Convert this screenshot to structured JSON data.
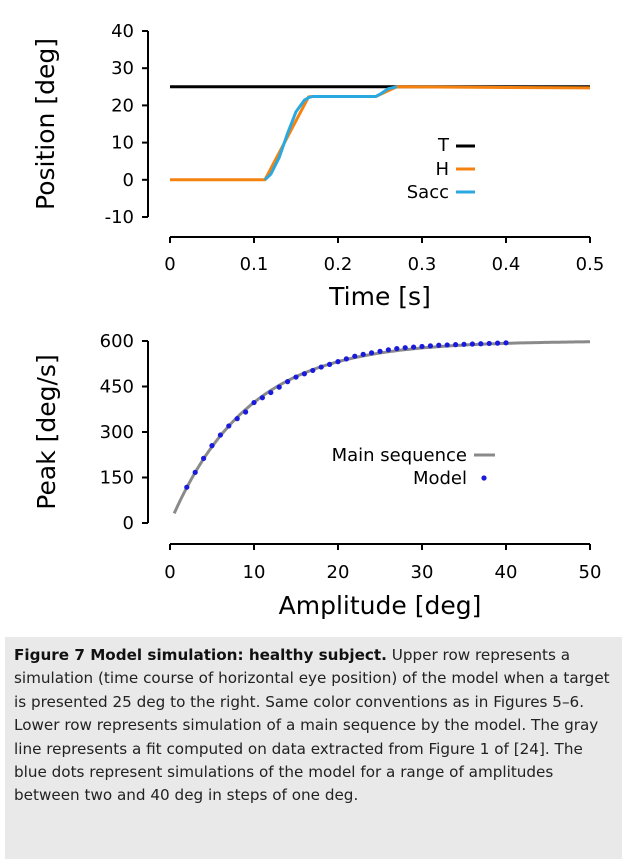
{
  "chart_data": [
    {
      "type": "line",
      "xlabel": "Time [s]",
      "ylabel": "Position [deg]",
      "xlim": [
        0,
        0.5
      ],
      "ylim": [
        -10,
        40
      ],
      "xticks": [
        "0",
        "0.1",
        "0.2",
        "0.3",
        "0.4",
        "0.5"
      ],
      "yticks": [
        "40",
        "30",
        "20",
        "10",
        "0",
        "-10"
      ],
      "legend_position": "right",
      "series": [
        {
          "name": "T",
          "color": "#000000",
          "x": [
            0,
            0.5
          ],
          "y": [
            25,
            25
          ]
        },
        {
          "name": "H",
          "color": "#f5820f",
          "x": [
            0,
            0.113,
            0.165,
            0.17,
            0.245,
            0.27,
            0.5
          ],
          "y": [
            0,
            0,
            22.3,
            22.4,
            22.4,
            25,
            24.7
          ]
        },
        {
          "name": "Sacc",
          "color": "#29a9e0",
          "x": [
            0.113,
            0.12,
            0.13,
            0.14,
            0.15,
            0.16,
            0.165,
            0.17,
            0.245,
            0.25,
            0.26,
            0.27
          ],
          "y": [
            0,
            1.5,
            6.0,
            12.5,
            18.3,
            21.4,
            22.1,
            22.4,
            22.4,
            23.0,
            24.5,
            25.0
          ]
        }
      ]
    },
    {
      "type": "scatter",
      "xlabel": "Amplitude [deg]",
      "ylabel": "Peak [deg/s]",
      "xlim": [
        0,
        50
      ],
      "ylim": [
        0,
        600
      ],
      "xticks": [
        "0",
        "10",
        "20",
        "30",
        "40",
        "50"
      ],
      "yticks": [
        "600",
        "450",
        "300",
        "150",
        "0"
      ],
      "legend_position": "center-right",
      "main_sequence": {
        "name": "Main sequence",
        "color": "#8a8a8a",
        "x_range": [
          0.5,
          50
        ],
        "vmax": 600,
        "c": 9.2
      },
      "model": {
        "name": "Model",
        "color": "#1a1adc",
        "x": [
          2,
          3,
          4,
          5,
          6,
          7,
          8,
          9,
          10,
          11,
          12,
          13,
          14,
          15,
          16,
          17,
          18,
          19,
          20,
          21,
          22,
          23,
          24,
          25,
          26,
          27,
          28,
          29,
          30,
          31,
          32,
          33,
          34,
          35,
          36,
          37,
          38,
          39,
          40
        ],
        "y": [
          118,
          167,
          213,
          255,
          290,
          320,
          344,
          366,
          397,
          413,
          430,
          448,
          466,
          481,
          492,
          503,
          514,
          523,
          532,
          541,
          550,
          556,
          561,
          566,
          571,
          575,
          578,
          580,
          582,
          584,
          586,
          587,
          588,
          589,
          590,
          591,
          592,
          593,
          594
        ]
      }
    }
  ],
  "caption": {
    "label": "Figure 7 Model simulation: healthy subject.",
    "text": " Upper row represents a simulation (time course of horizontal eye position) of the model when a target is presented 25 deg to the right. Same color conventions as in Figures 5–6. Lower row represents simulation of a main sequence by the model. The gray line represents a fit computed on data extracted from Figure 1 of [24]. The blue dots represent simulations of the model for a range of amplitudes between two and 40 deg in steps of one deg."
  }
}
